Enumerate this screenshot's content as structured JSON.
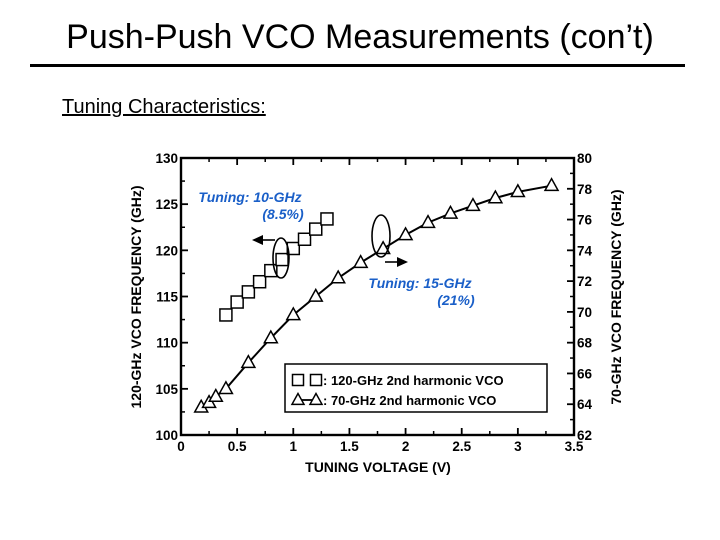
{
  "slide": {
    "title": "Push-Push VCO Measurements (con’t)",
    "subtitle": "Tuning Characteristics:"
  },
  "chart_data": {
    "type": "line",
    "xlabel": "TUNING VOLTAGE (V)",
    "ylabel_left": "120-GHz VCO FREQUENCY (GHz)",
    "ylabel_right": "70-GHz VCO FREQUENCY (GHz)",
    "xlim": [
      0,
      3.5
    ],
    "ylim_left": [
      100,
      130
    ],
    "ylim_right": [
      62,
      80
    ],
    "x_ticks": [
      "0",
      "0.5",
      "1",
      "1.5",
      "2",
      "2.5",
      "3",
      "3.5"
    ],
    "y_left_ticks": [
      "100",
      "105",
      "110",
      "115",
      "120",
      "125",
      "130"
    ],
    "y_right_ticks": [
      "62",
      "64",
      "66",
      "68",
      "70",
      "72",
      "74",
      "76",
      "78",
      "80"
    ],
    "grid": false,
    "legend_position": "bottom-right",
    "series": [
      {
        "name": ": 120-GHz 2nd harmonic VCO",
        "axis": "left",
        "marker": "square",
        "x": [
          0.4,
          0.5,
          0.6,
          0.7,
          0.8,
          0.9,
          1.0,
          1.1,
          1.2,
          1.3
        ],
        "y": [
          113.0,
          114.4,
          115.5,
          116.6,
          117.8,
          119.0,
          120.2,
          121.2,
          122.3,
          123.4
        ]
      },
      {
        "name": ": 70-GHz 2nd harmonic VCO",
        "axis": "right",
        "marker": "triangle",
        "x": [
          0.18,
          0.25,
          0.31,
          0.4,
          0.6,
          0.8,
          1.0,
          1.2,
          1.4,
          1.6,
          1.8,
          2.0,
          2.2,
          2.4,
          2.6,
          2.8,
          3.0,
          3.3
        ],
        "y": [
          63.8,
          64.1,
          64.5,
          65.0,
          66.7,
          68.3,
          69.8,
          71.0,
          72.2,
          73.2,
          74.1,
          75.0,
          75.8,
          76.4,
          76.9,
          77.4,
          77.8,
          78.2
        ]
      }
    ],
    "annotations": {
      "left_tuning_line1": "Tuning: 10-GHz",
      "left_tuning_line2": "(8.5%)",
      "right_tuning_line1": "Tuning: 15-GHz",
      "right_tuning_line2": "(21%)"
    },
    "colors": {
      "annotation": "#1a5fc8",
      "series": "#000000"
    }
  }
}
